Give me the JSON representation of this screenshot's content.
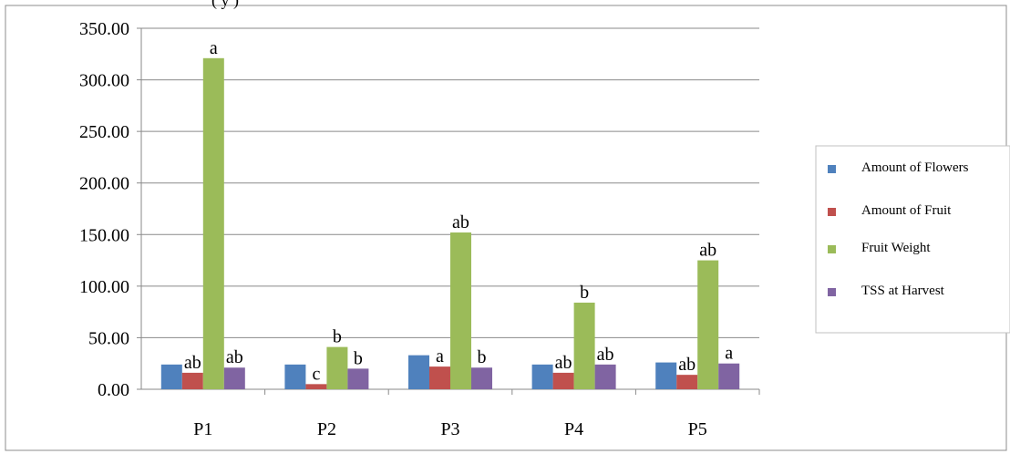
{
  "header_fragment": "(      y       )",
  "chart_data": {
    "type": "bar",
    "categories": [
      "P1",
      "P2",
      "P3",
      "P4",
      "P5"
    ],
    "ylim": [
      0,
      350
    ],
    "yticks": [
      "0.00",
      "50.00",
      "100.00",
      "150.00",
      "200.00",
      "250.00",
      "300.00",
      "350.00"
    ],
    "grid": true,
    "legend_position": "right",
    "series": [
      {
        "name": "Amount of Flowers",
        "color": "#4f81bd",
        "values": [
          24,
          24,
          33,
          24,
          26
        ],
        "labels": [
          "",
          "",
          "",
          "",
          ""
        ]
      },
      {
        "name": "Amount of Fruit",
        "color": "#c0504d",
        "values": [
          16,
          5,
          22,
          16,
          14
        ],
        "labels": [
          "ab",
          "c",
          "a",
          "ab",
          "ab"
        ]
      },
      {
        "name": "Fruit Weight",
        "color": "#9bbb59",
        "values": [
          321,
          41,
          152,
          84,
          125
        ],
        "labels": [
          "a",
          "b",
          "ab",
          "b",
          "ab"
        ]
      },
      {
        "name": "TSS at Harvest",
        "color": "#8064a2",
        "values": [
          21,
          20,
          21,
          24,
          25
        ],
        "labels": [
          "ab",
          "b",
          "b",
          "ab",
          "a"
        ]
      }
    ]
  }
}
